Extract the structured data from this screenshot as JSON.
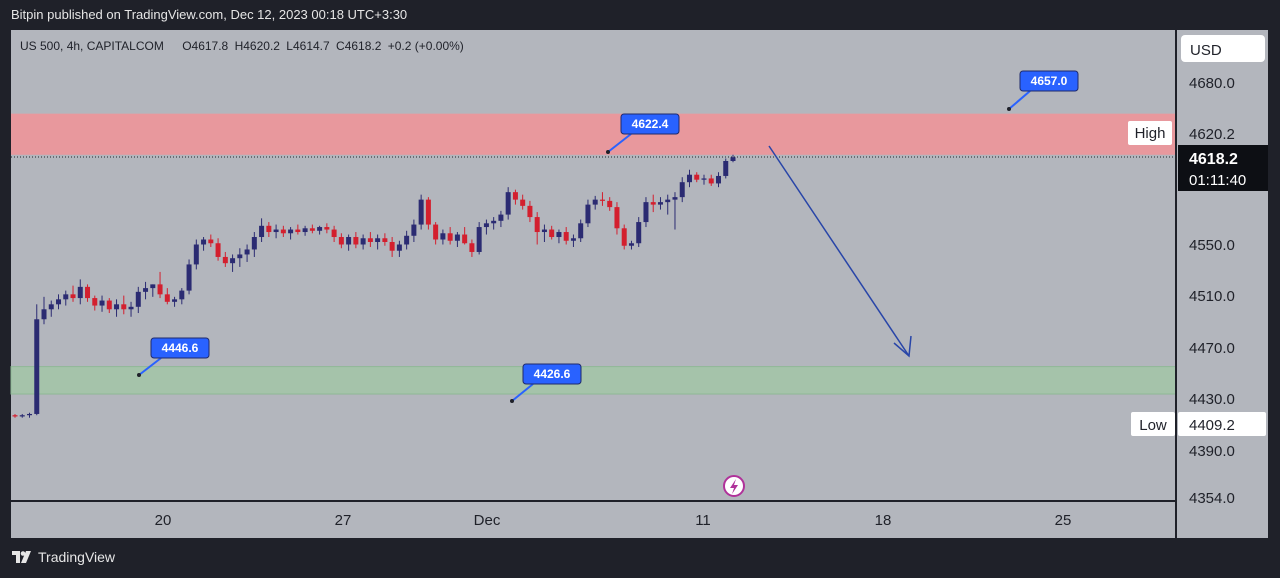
{
  "publisher_line": "Bitpin published on TradingView.com, Dec 12, 2023 00:18 UTC+3:30",
  "legend": {
    "symbol": "US 500, 4h, CAPITALCOM",
    "open": "O4617.8",
    "high": "H4620.2",
    "low": "L4614.7",
    "close": "C4618.2",
    "change": "+0.2 (+0.00%)"
  },
  "brand": "TradingView",
  "colors": {
    "up": "#2b2b72",
    "down": "#d31f2e",
    "callout": "#2962ff",
    "arrow": "#2845a8",
    "resistance_zone": "#e8989d",
    "support_zone": "#a5c3aa",
    "background": "#b3b6bd",
    "frame": "#1f2129"
  },
  "chart_data": {
    "type": "candlestick",
    "symbol": "US 500",
    "timeframe": "4h",
    "currency": "USD",
    "y_range": [
      4354.0,
      4696.0
    ],
    "y_ticks": [
      "4680.0",
      "4550.0",
      "4510.0",
      "4470.0",
      "4430.0",
      "4390.0",
      "4354.0"
    ],
    "x_ticks": [
      "20",
      "27",
      "Dec",
      "11",
      "18",
      "25"
    ],
    "last_price": "4618.2",
    "countdown": "01:11:40",
    "high_label": "High",
    "high_value": "4620.2",
    "low_label": "Low",
    "low_value": "4409.2",
    "zones": [
      {
        "kind": "resistance",
        "from": 4620,
        "to": 4653
      },
      {
        "kind": "support",
        "from": 4428,
        "to": 4450
      }
    ],
    "callouts": [
      "4657.0",
      "4622.4",
      "4446.6",
      "4426.6"
    ],
    "candles": [
      [
        4411,
        4412,
        4409,
        4410
      ],
      [
        4410,
        4412,
        4409,
        4411
      ],
      [
        4411,
        4413,
        4409,
        4412
      ],
      [
        4412,
        4500,
        4411,
        4488
      ],
      [
        4488,
        4506,
        4484,
        4496
      ],
      [
        4496,
        4503,
        4490,
        4500
      ],
      [
        4500,
        4508,
        4496,
        4504
      ],
      [
        4504,
        4511,
        4499,
        4508
      ],
      [
        4508,
        4515,
        4502,
        4505
      ],
      [
        4505,
        4520,
        4500,
        4514
      ],
      [
        4514,
        4516,
        4502,
        4505
      ],
      [
        4505,
        4507,
        4495,
        4499
      ],
      [
        4499,
        4507,
        4494,
        4503
      ],
      [
        4503,
        4505,
        4493,
        4496
      ],
      [
        4496,
        4504,
        4490,
        4500
      ],
      [
        4500,
        4507,
        4492,
        4496
      ],
      [
        4496,
        4502,
        4490,
        4498
      ],
      [
        4498,
        4514,
        4493,
        4510
      ],
      [
        4510,
        4518,
        4504,
        4513
      ],
      [
        4513,
        4516,
        4506,
        4516
      ],
      [
        4516,
        4526,
        4505,
        4508
      ],
      [
        4508,
        4513,
        4500,
        4502
      ],
      [
        4502,
        4506,
        4498,
        4504
      ],
      [
        4504,
        4513,
        4500,
        4511
      ],
      [
        4511,
        4536,
        4508,
        4532
      ],
      [
        4532,
        4552,
        4528,
        4548
      ],
      [
        4548,
        4554,
        4543,
        4552
      ],
      [
        4552,
        4556,
        4546,
        4549
      ],
      [
        4549,
        4553,
        4535,
        4538
      ],
      [
        4538,
        4542,
        4530,
        4533
      ],
      [
        4533,
        4540,
        4526,
        4537
      ],
      [
        4537,
        4545,
        4530,
        4540
      ],
      [
        4540,
        4548,
        4534,
        4544
      ],
      [
        4544,
        4558,
        4538,
        4554
      ],
      [
        4554,
        4569,
        4550,
        4563
      ],
      [
        4563,
        4566,
        4554,
        4558
      ],
      [
        4558,
        4564,
        4553,
        4560
      ],
      [
        4560,
        4563,
        4554,
        4557
      ],
      [
        4557,
        4562,
        4552,
        4560
      ],
      [
        4560,
        4564,
        4556,
        4558
      ],
      [
        4558,
        4563,
        4555,
        4561
      ],
      [
        4561,
        4564,
        4557,
        4559
      ],
      [
        4559,
        4563,
        4556,
        4562
      ],
      [
        4562,
        4565,
        4557,
        4560
      ],
      [
        4560,
        4563,
        4550,
        4554
      ],
      [
        4554,
        4557,
        4545,
        4548
      ],
      [
        4548,
        4556,
        4543,
        4554
      ],
      [
        4554,
        4558,
        4545,
        4548
      ],
      [
        4548,
        4556,
        4544,
        4553
      ],
      [
        4553,
        4558,
        4546,
        4550
      ],
      [
        4550,
        4556,
        4544,
        4553
      ],
      [
        4553,
        4557,
        4547,
        4550
      ],
      [
        4550,
        4554,
        4538,
        4543
      ],
      [
        4543,
        4551,
        4538,
        4548
      ],
      [
        4548,
        4559,
        4544,
        4555
      ],
      [
        4555,
        4568,
        4550,
        4564
      ],
      [
        4564,
        4588,
        4560,
        4584
      ],
      [
        4584,
        4586,
        4560,
        4564
      ],
      [
        4564,
        4566,
        4548,
        4552
      ],
      [
        4552,
        4560,
        4548,
        4557
      ],
      [
        4557,
        4562,
        4548,
        4551
      ],
      [
        4551,
        4558,
        4546,
        4556
      ],
      [
        4556,
        4562,
        4548,
        4549
      ],
      [
        4549,
        4552,
        4538,
        4542
      ],
      [
        4542,
        4566,
        4540,
        4562
      ],
      [
        4562,
        4568,
        4556,
        4565
      ],
      [
        4565,
        4570,
        4560,
        4567
      ],
      [
        4567,
        4575,
        4562,
        4572
      ],
      [
        4572,
        4594,
        4568,
        4590
      ],
      [
        4590,
        4592,
        4580,
        4584
      ],
      [
        4584,
        4588,
        4576,
        4579
      ],
      [
        4579,
        4583,
        4566,
        4570
      ],
      [
        4570,
        4574,
        4548,
        4558
      ],
      [
        4558,
        4564,
        4550,
        4560
      ],
      [
        4560,
        4563,
        4552,
        4554
      ],
      [
        4554,
        4560,
        4549,
        4558
      ],
      [
        4558,
        4562,
        4548,
        4551
      ],
      [
        4551,
        4556,
        4546,
        4553
      ],
      [
        4553,
        4568,
        4550,
        4565
      ],
      [
        4565,
        4584,
        4562,
        4580
      ],
      [
        4580,
        4587,
        4576,
        4584
      ],
      [
        4584,
        4590,
        4579,
        4583
      ],
      [
        4583,
        4586,
        4575,
        4578
      ],
      [
        4578,
        4582,
        4556,
        4561
      ],
      [
        4561,
        4564,
        4544,
        4547
      ],
      [
        4547,
        4551,
        4544,
        4549
      ],
      [
        4549,
        4570,
        4546,
        4566
      ],
      [
        4566,
        4586,
        4562,
        4582
      ],
      [
        4582,
        4588,
        4574,
        4580
      ],
      [
        4580,
        4586,
        4576,
        4582
      ],
      [
        4582,
        4588,
        4572,
        4584
      ],
      [
        4584,
        4590,
        4560,
        4586
      ],
      [
        4586,
        4602,
        4582,
        4598
      ],
      [
        4598,
        4608,
        4594,
        4604
      ],
      [
        4604,
        4606,
        4598,
        4600
      ],
      [
        4600,
        4604,
        4596,
        4601
      ],
      [
        4601,
        4604,
        4595,
        4597
      ],
      [
        4597,
        4606,
        4594,
        4603
      ],
      [
        4603,
        4617,
        4601,
        4615
      ],
      [
        4615,
        4620,
        4614,
        4618
      ]
    ]
  }
}
